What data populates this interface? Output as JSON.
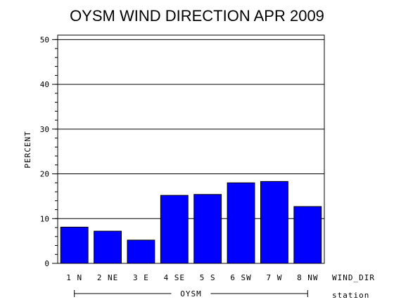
{
  "chart_data": {
    "type": "bar",
    "title": "OYSM WIND DIRECTION APR 2009",
    "ylabel": "PERCENT",
    "xlabel": "WIND_DIR",
    "group_label": "OYSM",
    "group_axis_label": "station",
    "categories": [
      "1 N",
      "2 NE",
      "3 E",
      "4 SE",
      "5 S",
      "6 SW",
      "7 W",
      "8 NW"
    ],
    "values": [
      8.1,
      7.2,
      5.2,
      15.2,
      15.4,
      18.0,
      18.3,
      12.7
    ],
    "ylim": [
      0,
      51
    ],
    "yticks": [
      0,
      10,
      20,
      30,
      40,
      50
    ],
    "grid": true,
    "bar_color": "#0000ff"
  }
}
